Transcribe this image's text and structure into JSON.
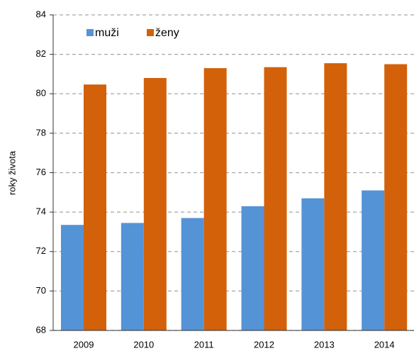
{
  "chart_data": {
    "type": "bar",
    "ylabel": "roky života",
    "categories": [
      "2009",
      "2010",
      "2011",
      "2012",
      "2013",
      "2014"
    ],
    "series": [
      {
        "name": "muži",
        "color": "#5593d7",
        "values": [
          73.35,
          73.45,
          73.7,
          74.3,
          74.7,
          75.1
        ]
      },
      {
        "name": "ženy",
        "color": "#d2610a",
        "values": [
          80.47,
          80.8,
          81.3,
          81.35,
          81.55,
          81.5
        ]
      }
    ],
    "ylim": [
      68,
      84
    ],
    "yticks": [
      68,
      70,
      72,
      74,
      76,
      78,
      80,
      82,
      84
    ],
    "grid": true,
    "legend": "top-left"
  }
}
